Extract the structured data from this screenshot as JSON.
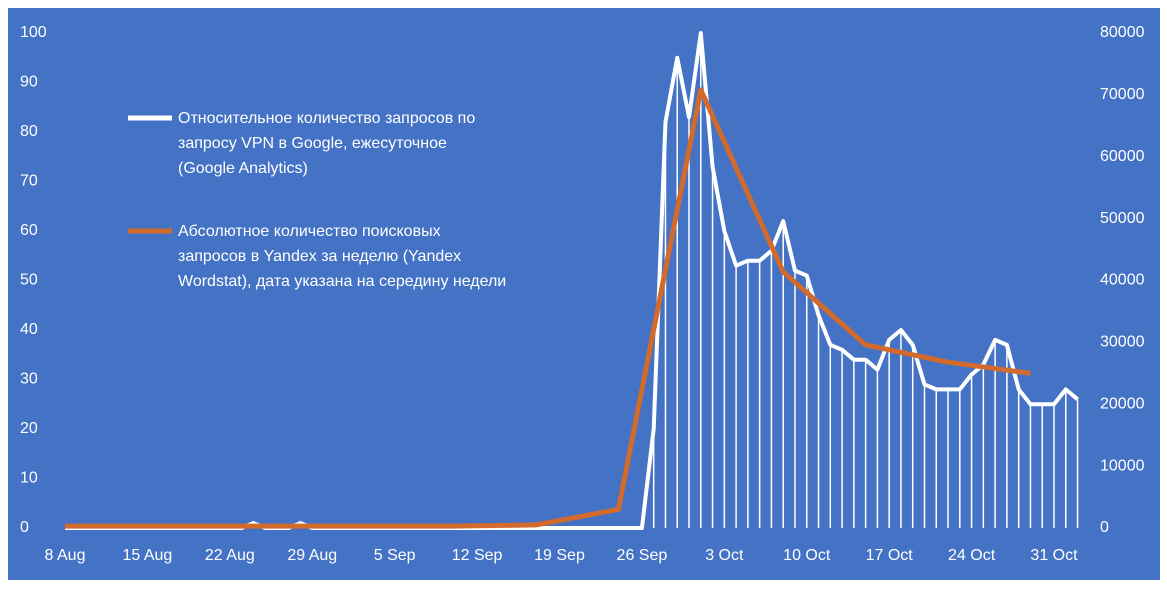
{
  "chart_data": {
    "type": "line",
    "x": [
      "8 Aug",
      "9 Aug",
      "10 Aug",
      "11 Aug",
      "12 Aug",
      "13 Aug",
      "14 Aug",
      "15 Aug",
      "16 Aug",
      "17 Aug",
      "18 Aug",
      "19 Aug",
      "20 Aug",
      "21 Aug",
      "22 Aug",
      "23 Aug",
      "24 Aug",
      "25 Aug",
      "26 Aug",
      "27 Aug",
      "28 Aug",
      "29 Aug",
      "30 Aug",
      "31 Aug",
      "1 Sep",
      "2 Sep",
      "3 Sep",
      "4 Sep",
      "5 Sep",
      "6 Sep",
      "7 Sep",
      "8 Sep",
      "9 Sep",
      "10 Sep",
      "11 Sep",
      "12 Sep",
      "13 Sep",
      "14 Sep",
      "15 Sep",
      "16 Sep",
      "17 Sep",
      "18 Sep",
      "19 Sep",
      "20 Sep",
      "21 Sep",
      "22 Sep",
      "23 Sep",
      "24 Sep",
      "25 Sep",
      "26 Sep",
      "27 Sep",
      "28 Sep",
      "29 Sep",
      "30 Sep",
      "1 Oct",
      "2 Oct",
      "3 Oct",
      "4 Oct",
      "5 Oct",
      "6 Oct",
      "7 Oct",
      "8 Oct",
      "9 Oct",
      "10 Oct",
      "11 Oct",
      "12 Oct",
      "13 Oct",
      "14 Oct",
      "15 Oct",
      "16 Oct",
      "17 Oct",
      "18 Oct",
      "19 Oct",
      "20 Oct",
      "21 Oct",
      "22 Oct",
      "23 Oct",
      "24 Oct",
      "25 Oct",
      "26 Oct",
      "27 Oct",
      "28 Oct",
      "29 Oct",
      "30 Oct",
      "31 Oct",
      "1 Nov",
      "2 Nov"
    ],
    "xticks": [
      "8 Aug",
      "15 Aug",
      "22 Aug",
      "29 Aug",
      "5 Sep",
      "12 Sep",
      "19 Sep",
      "26 Sep",
      "3 Oct",
      "10 Oct",
      "17 Oct",
      "24 Oct",
      "31 Oct"
    ],
    "series": [
      {
        "name": "Относительное количество запросов по запросу VPN в Google, ежесуточное (Google Analytics)",
        "color": "#ffffff",
        "values": [
          0,
          0,
          0,
          0,
          0,
          0,
          0,
          0,
          0,
          0,
          0,
          0,
          0,
          0,
          0,
          0,
          1,
          0,
          0,
          0,
          1,
          0,
          0,
          0,
          0,
          0,
          0,
          0,
          0,
          0,
          0,
          0,
          0,
          0,
          0,
          0,
          0,
          0,
          0,
          0,
          0,
          0,
          0,
          0,
          0,
          0,
          0,
          0,
          0,
          0,
          20,
          82,
          95,
          83,
          100,
          73,
          60,
          53,
          54,
          54,
          56,
          62,
          52,
          51,
          43,
          37,
          36,
          34,
          34,
          32,
          38,
          40,
          37,
          29,
          28,
          28,
          28,
          31,
          33,
          38,
          37,
          28,
          25,
          25,
          25,
          28,
          26
        ]
      },
      {
        "name": "Абсолютное количество поисковых запросов в Yandex за неделю (Yandex Wordstat), дата указана на середину недели",
        "color": "#d26a2c",
        "axis": "y2",
        "x": [
          "8 Aug",
          "13 Aug",
          "20 Aug",
          "27 Aug",
          "3 Sep",
          "10 Sep",
          "17 Sep",
          "24 Sep",
          "1 Oct",
          "8 Oct",
          "15 Oct",
          "22 Oct",
          "29 Oct"
        ],
        "values": [
          300,
          300,
          300,
          300,
          300,
          300,
          500,
          3000,
          70800,
          41400,
          29600,
          26800,
          25000
        ]
      }
    ],
    "ylim": [
      0,
      100
    ],
    "yticks": [
      0,
      10,
      20,
      30,
      40,
      50,
      60,
      70,
      80,
      90,
      100
    ],
    "y2lim": [
      0,
      80000
    ],
    "y2ticks": [
      0,
      10000,
      20000,
      30000,
      40000,
      50000,
      60000,
      70000,
      80000
    ]
  }
}
